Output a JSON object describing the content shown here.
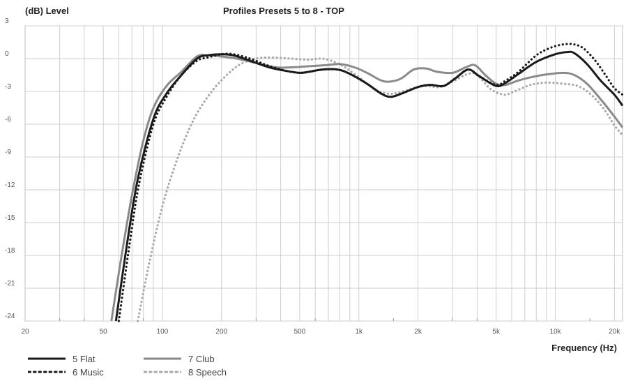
{
  "chart_data": {
    "type": "line",
    "title": "Profiles Presets 5 to 8 - TOP",
    "ylabel": "(dB) Level",
    "xlabel": "Frequency (Hz)",
    "x_scale": "log",
    "xlim": [
      20,
      22000
    ],
    "ylim": [
      -24,
      3
    ],
    "grid": true,
    "legend_position": "bottom-left",
    "x_ticks": [
      {
        "value": 20,
        "label": "20"
      },
      {
        "value": 50,
        "label": "50"
      },
      {
        "value": 100,
        "label": "100"
      },
      {
        "value": 200,
        "label": "200"
      },
      {
        "value": 500,
        "label": "500"
      },
      {
        "value": 1000,
        "label": "1k"
      },
      {
        "value": 2000,
        "label": "2k"
      },
      {
        "value": 5000,
        "label": "5k"
      },
      {
        "value": 10000,
        "label": "10k"
      },
      {
        "value": 20000,
        "label": "20k"
      }
    ],
    "y_ticks": [
      {
        "value": 3,
        "label": "3"
      },
      {
        "value": 0,
        "label": "0"
      },
      {
        "value": -3,
        "label": "-3"
      },
      {
        "value": -6,
        "label": "-6"
      },
      {
        "value": -9,
        "label": "-9"
      },
      {
        "value": -12,
        "label": "-12"
      },
      {
        "value": -15,
        "label": "-15"
      },
      {
        "value": -18,
        "label": "-18"
      },
      {
        "value": -21,
        "label": "-21"
      },
      {
        "value": -24,
        "label": "-24"
      }
    ],
    "series": [
      {
        "name": "5 Flat",
        "color": "#1a1a1a",
        "style": "solid",
        "points": [
          [
            58,
            -24
          ],
          [
            66,
            -17
          ],
          [
            75,
            -11
          ],
          [
            90,
            -5.5
          ],
          [
            105,
            -3.2
          ],
          [
            125,
            -1.5
          ],
          [
            150,
            0
          ],
          [
            170,
            0.3
          ],
          [
            200,
            0.4
          ],
          [
            230,
            0.3
          ],
          [
            280,
            -0.2
          ],
          [
            350,
            -0.8
          ],
          [
            420,
            -1.1
          ],
          [
            500,
            -1.3
          ],
          [
            560,
            -1.2
          ],
          [
            650,
            -1.0
          ],
          [
            780,
            -1.0
          ],
          [
            900,
            -1.4
          ],
          [
            1100,
            -2.3
          ],
          [
            1300,
            -3.2
          ],
          [
            1450,
            -3.5
          ],
          [
            1650,
            -3.2
          ],
          [
            2000,
            -2.6
          ],
          [
            2300,
            -2.4
          ],
          [
            2700,
            -2.5
          ],
          [
            3100,
            -1.8
          ],
          [
            3600,
            -1.0
          ],
          [
            4100,
            -1.6
          ],
          [
            5000,
            -2.5
          ],
          [
            5600,
            -2.2
          ],
          [
            6500,
            -1.4
          ],
          [
            8000,
            -0.3
          ],
          [
            10000,
            0.4
          ],
          [
            11500,
            0.6
          ],
          [
            12500,
            0.5
          ],
          [
            14500,
            -0.5
          ],
          [
            17000,
            -2.0
          ],
          [
            20000,
            -3.3
          ],
          [
            22000,
            -4.3
          ]
        ]
      },
      {
        "name": "6 Music",
        "color": "#1a1a1a",
        "style": "dotted",
        "points": [
          [
            60,
            -24
          ],
          [
            68,
            -17
          ],
          [
            76,
            -11.5
          ],
          [
            90,
            -6
          ],
          [
            105,
            -3.5
          ],
          [
            125,
            -1.5
          ],
          [
            150,
            -0.2
          ],
          [
            170,
            0.1
          ],
          [
            200,
            0.4
          ],
          [
            230,
            0.4
          ],
          [
            280,
            0
          ],
          [
            340,
            -0.6
          ],
          [
            420,
            -1.1
          ],
          [
            500,
            -1.3
          ],
          [
            560,
            -1.2
          ],
          [
            650,
            -1.0
          ],
          [
            780,
            -1.0
          ],
          [
            900,
            -1.4
          ],
          [
            1100,
            -2.3
          ],
          [
            1300,
            -3.2
          ],
          [
            1450,
            -3.5
          ],
          [
            1650,
            -3.2
          ],
          [
            2000,
            -2.6
          ],
          [
            2300,
            -2.4
          ],
          [
            2700,
            -2.5
          ],
          [
            3100,
            -1.8
          ],
          [
            3600,
            -1.0
          ],
          [
            4100,
            -1.6
          ],
          [
            5000,
            -2.4
          ],
          [
            5600,
            -2.0
          ],
          [
            6500,
            -1.2
          ],
          [
            8000,
            0.3
          ],
          [
            9500,
            1.0
          ],
          [
            11000,
            1.3
          ],
          [
            12500,
            1.3
          ],
          [
            14000,
            0.9
          ],
          [
            16000,
            -0.2
          ],
          [
            18000,
            -1.5
          ],
          [
            20000,
            -2.7
          ],
          [
            22000,
            -3.3
          ]
        ]
      },
      {
        "name": "7 Club",
        "color": "#8a8a8a",
        "style": "solid",
        "points": [
          [
            55,
            -24
          ],
          [
            62,
            -18
          ],
          [
            70,
            -12.5
          ],
          [
            80,
            -7.5
          ],
          [
            90,
            -4.5
          ],
          [
            105,
            -2.5
          ],
          [
            125,
            -1.2
          ],
          [
            150,
            0.2
          ],
          [
            170,
            0.3
          ],
          [
            200,
            0.2
          ],
          [
            240,
            0
          ],
          [
            300,
            -0.4
          ],
          [
            380,
            -0.8
          ],
          [
            450,
            -0.8
          ],
          [
            550,
            -0.7
          ],
          [
            680,
            -0.6
          ],
          [
            800,
            -0.5
          ],
          [
            950,
            -0.8
          ],
          [
            1100,
            -1.3
          ],
          [
            1300,
            -2.0
          ],
          [
            1450,
            -2.1
          ],
          [
            1650,
            -1.8
          ],
          [
            1900,
            -1.0
          ],
          [
            2200,
            -0.9
          ],
          [
            2500,
            -1.2
          ],
          [
            3000,
            -1.3
          ],
          [
            3500,
            -0.8
          ],
          [
            3900,
            -0.6
          ],
          [
            4400,
            -1.5
          ],
          [
            5000,
            -2.3
          ],
          [
            5600,
            -2.4
          ],
          [
            6500,
            -2.0
          ],
          [
            8000,
            -1.6
          ],
          [
            9500,
            -1.4
          ],
          [
            11000,
            -1.3
          ],
          [
            12500,
            -1.5
          ],
          [
            14500,
            -2.3
          ],
          [
            17000,
            -3.7
          ],
          [
            20000,
            -5.3
          ],
          [
            22000,
            -6.3
          ]
        ]
      },
      {
        "name": "8 Speech",
        "color": "#a8a8a8",
        "style": "dotted",
        "points": [
          [
            75,
            -24
          ],
          [
            85,
            -19
          ],
          [
            100,
            -13.5
          ],
          [
            120,
            -9
          ],
          [
            145,
            -5.5
          ],
          [
            175,
            -3.2
          ],
          [
            210,
            -1.6
          ],
          [
            250,
            -0.5
          ],
          [
            300,
            0
          ],
          [
            360,
            0.1
          ],
          [
            450,
            0
          ],
          [
            550,
            -0.1
          ],
          [
            650,
            0
          ],
          [
            750,
            -0.3
          ],
          [
            850,
            -0.8
          ],
          [
            1000,
            -1.7
          ],
          [
            1200,
            -2.8
          ],
          [
            1400,
            -3.2
          ],
          [
            1600,
            -3.1
          ],
          [
            1900,
            -2.7
          ],
          [
            2200,
            -2.5
          ],
          [
            2600,
            -2.6
          ],
          [
            3000,
            -2.1
          ],
          [
            3600,
            -1.4
          ],
          [
            4000,
            -1.5
          ],
          [
            4700,
            -2.8
          ],
          [
            5500,
            -3.3
          ],
          [
            6200,
            -3.0
          ],
          [
            7500,
            -2.4
          ],
          [
            9000,
            -2.2
          ],
          [
            11000,
            -2.3
          ],
          [
            13000,
            -2.5
          ],
          [
            15000,
            -3.2
          ],
          [
            17500,
            -4.5
          ],
          [
            20000,
            -6.1
          ],
          [
            22000,
            -7.0
          ]
        ]
      }
    ]
  }
}
